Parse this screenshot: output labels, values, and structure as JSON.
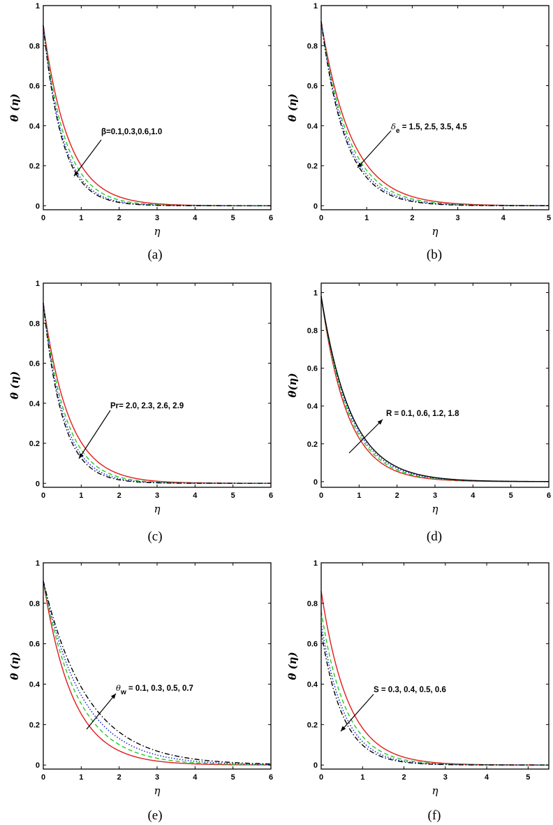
{
  "chart_data": [
    {
      "type": "line",
      "panel_label": "(a)",
      "ylabel": "θ (η)",
      "xlabel": "η",
      "xlim": [
        0,
        6
      ],
      "ylim": [
        -0.02,
        1.0
      ],
      "xticks": [
        "0",
        "1",
        "2",
        "3",
        "4",
        "5",
        "6"
      ],
      "yticks": [
        "0",
        "0.2",
        "0.4",
        "0.6",
        "0.8",
        "1"
      ],
      "annotation": "β=0.1,0.3,0.6,1.0",
      "arrow": "down-left",
      "series": [
        {
          "name": "β=0.1",
          "color": "#e31a1c",
          "style": "solid",
          "theta0": 0.9,
          "decay": 1.5
        },
        {
          "name": "β=0.3",
          "color": "#22cc22",
          "style": "dashed",
          "theta0": 0.9,
          "decay": 1.72
        },
        {
          "name": "β=0.6",
          "color": "#1f2fd0",
          "style": "dotted",
          "theta0": 0.9,
          "decay": 1.9
        },
        {
          "name": "β=1.0",
          "color": "#000000",
          "style": "dashdot",
          "theta0": 0.9,
          "decay": 2.0
        }
      ]
    },
    {
      "type": "line",
      "panel_label": "(b)",
      "ylabel": "θ (η)",
      "xlabel": "η",
      "xlim": [
        0,
        5
      ],
      "ylim": [
        -0.02,
        1.0
      ],
      "xticks": [
        "0",
        "1",
        "2",
        "3",
        "4",
        "5"
      ],
      "yticks": [
        "0",
        "0.2",
        "0.4",
        "0.6",
        "0.8",
        "1"
      ],
      "annotation_symbol": "δ",
      "annotation_sub": "e",
      "annotation": " = 1.5, 2.5, 3.5, 4.5",
      "arrow": "down-left",
      "series": [
        {
          "name": "δe=1.5",
          "color": "#e31a1c",
          "style": "solid",
          "theta0": 0.92,
          "decay": 1.5
        },
        {
          "name": "δe=2.5",
          "color": "#22cc22",
          "style": "dashed",
          "theta0": 0.92,
          "decay": 1.65
        },
        {
          "name": "δe=3.5",
          "color": "#1f2fd0",
          "style": "dotted",
          "theta0": 0.92,
          "decay": 1.78
        },
        {
          "name": "δe=4.5",
          "color": "#000000",
          "style": "dashdot",
          "theta0": 0.92,
          "decay": 1.88
        }
      ]
    },
    {
      "type": "line",
      "panel_label": "(c)",
      "ylabel": "θ (η)",
      "xlabel": "η",
      "xlim": [
        0,
        6
      ],
      "ylim": [
        -0.02,
        1.0
      ],
      "xticks": [
        "0",
        "1",
        "2",
        "3",
        "4",
        "5",
        "6"
      ],
      "yticks": [
        "0",
        "0.2",
        "0.4",
        "0.6",
        "0.8",
        "1"
      ],
      "annotation": "Pr= 2.0, 2.3, 2.6, 2.9",
      "arrow": "down-left",
      "series": [
        {
          "name": "Pr=2.0",
          "color": "#e31a1c",
          "style": "solid",
          "theta0": 0.9,
          "decay": 1.48
        },
        {
          "name": "Pr=2.3",
          "color": "#22cc22",
          "style": "dashed",
          "theta0": 0.9,
          "decay": 1.68
        },
        {
          "name": "Pr=2.6",
          "color": "#1f2fd0",
          "style": "dotted",
          "theta0": 0.9,
          "decay": 1.84
        },
        {
          "name": "Pr=2.9",
          "color": "#000000",
          "style": "dashdot",
          "theta0": 0.9,
          "decay": 1.97
        }
      ]
    },
    {
      "type": "line",
      "panel_label": "(d)",
      "ylabel": "θ(η)",
      "xlabel": "η",
      "xlim": [
        0,
        6
      ],
      "ylim": [
        -0.03,
        1.05
      ],
      "xticks": [
        "0",
        "1",
        "2",
        "3",
        "4",
        "5",
        "6"
      ],
      "yticks": [
        "0",
        "0.2",
        "0.4",
        "0.6",
        "0.8",
        "1"
      ],
      "annotation": "R = 0.1, 0.6, 1.2, 1.8",
      "arrow": "up-right",
      "series": [
        {
          "name": "R=0.1",
          "color": "#e31a1c",
          "style": "solid",
          "theta0": 0.98,
          "decay": 1.45
        },
        {
          "name": "R=0.6",
          "color": "#22cc22",
          "style": "dashed",
          "theta0": 0.98,
          "decay": 1.38
        },
        {
          "name": "R=1.2",
          "color": "#1f2fd0",
          "style": "dotted",
          "theta0": 0.98,
          "decay": 1.32
        },
        {
          "name": "R=1.8",
          "color": "#000000",
          "style": "solid",
          "theta0": 0.98,
          "decay": 1.27
        }
      ]
    },
    {
      "type": "line",
      "panel_label": "(e)",
      "ylabel": "θ (η)",
      "xlabel": "η",
      "xlim": [
        0,
        6
      ],
      "ylim": [
        -0.02,
        1.0
      ],
      "xticks": [
        "0",
        "1",
        "2",
        "3",
        "4",
        "5",
        "6"
      ],
      "yticks": [
        "0",
        "0.2",
        "0.4",
        "0.6",
        "0.8",
        "1"
      ],
      "annotation_symbol": "θ",
      "annotation_sub": "w",
      "annotation": " = 0.1, 0.3, 0.5, 0.7",
      "arrow": "up-right",
      "series": [
        {
          "name": "θw=0.1",
          "color": "#e31a1c",
          "style": "solid",
          "theta0": 0.91,
          "decay": 1.28
        },
        {
          "name": "θw=0.3",
          "color": "#22cc22",
          "style": "dashed",
          "theta0": 0.91,
          "decay": 1.1
        },
        {
          "name": "θw=0.5",
          "color": "#1f2fd0",
          "style": "dotted",
          "theta0": 0.91,
          "decay": 0.97
        },
        {
          "name": "θw=0.7",
          "color": "#000000",
          "style": "dashdot",
          "theta0": 0.91,
          "decay": 0.86
        }
      ]
    },
    {
      "type": "line",
      "panel_label": "(f)",
      "ylabel": "θ (η)",
      "xlabel": "η",
      "xlim": [
        0,
        5.5
      ],
      "ylim": [
        -0.02,
        1.0
      ],
      "xticks": [
        "0",
        "1",
        "2",
        "3",
        "4",
        "5"
      ],
      "yticks": [
        "0",
        "0.2",
        "0.4",
        "0.6",
        "0.8",
        "1"
      ],
      "annotation": "S = 0.3, 0.4, 0.5, 0.6",
      "arrow": "down-left",
      "series": [
        {
          "name": "S=0.3",
          "color": "#e31a1c",
          "style": "solid",
          "theta0": 0.86,
          "decay": 1.55
        },
        {
          "name": "S=0.4",
          "color": "#22cc22",
          "style": "dashed",
          "theta0": 0.76,
          "decay": 1.68
        },
        {
          "name": "S=0.5",
          "color": "#1f2fd0",
          "style": "dotted",
          "theta0": 0.7,
          "decay": 1.8
        },
        {
          "name": "S=0.6",
          "color": "#000000",
          "style": "dashdot",
          "theta0": 0.66,
          "decay": 1.9
        }
      ]
    }
  ]
}
